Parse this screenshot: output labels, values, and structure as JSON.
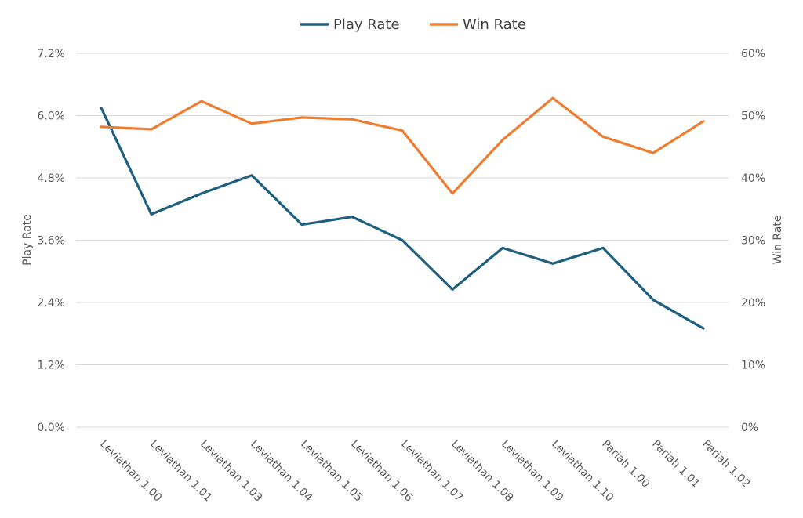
{
  "chart_data": {
    "type": "line",
    "categories": [
      "Leviathan 1.00",
      "Leviathan 1.01",
      "Leviathan 1.03",
      "Leviathan 1.04",
      "Leviathan 1.05",
      "Leviathan 1.06",
      "Leviathan 1.07",
      "Leviathan 1.08",
      "Leviathan 1.09",
      "Leviathan 1.10",
      "Pariah 1.00",
      "Pariah 1.01",
      "Pariah 1.02"
    ],
    "series": [
      {
        "name": "Play Rate",
        "axis": "left",
        "color": "#1f5f7f",
        "values": [
          6.15,
          4.1,
          4.5,
          4.85,
          3.9,
          4.05,
          3.6,
          2.65,
          3.45,
          3.15,
          3.45,
          2.45,
          1.9
        ]
      },
      {
        "name": "Win Rate",
        "axis": "right",
        "color": "#ed7d31",
        "values": [
          48.2,
          47.8,
          52.3,
          48.7,
          49.7,
          49.4,
          47.6,
          37.5,
          46.1,
          52.8,
          46.6,
          44.0,
          49.1
        ]
      }
    ],
    "ylabel": "Play Rate",
    "y2label": "Win Rate",
    "ylim": [
      0,
      7.2
    ],
    "y2lim": [
      0,
      60
    ],
    "yticks": [
      "0.0%",
      "1.2%",
      "2.4%",
      "3.6%",
      "4.8%",
      "6.0%",
      "7.2%"
    ],
    "y2ticks": [
      "0%",
      "10%",
      "20%",
      "30%",
      "40%",
      "50%",
      "60%"
    ],
    "grid": true,
    "legend": "top-center"
  }
}
